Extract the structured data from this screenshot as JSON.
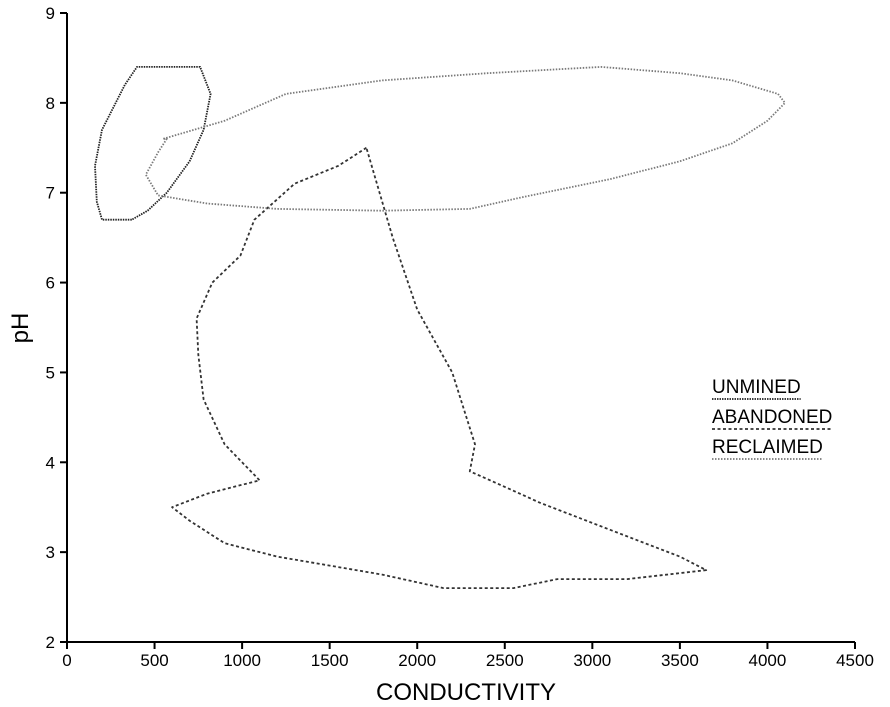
{
  "chart_data": {
    "type": "line",
    "title": "",
    "xlabel": "CONDUCTIVITY",
    "ylabel": "pH",
    "xlim": [
      0,
      4500
    ],
    "ylim": [
      2,
      9
    ],
    "x_ticks": [
      "0",
      "500",
      "1000",
      "1500",
      "2000",
      "2500",
      "3000",
      "3500",
      "4000",
      "4500"
    ],
    "y_ticks": [
      "2",
      "3",
      "4",
      "5",
      "6",
      "7",
      "8",
      "9"
    ],
    "grid": false,
    "legend_position": "right",
    "series": [
      {
        "name": "UNMINED",
        "color": "#222222",
        "dash": "1.5,1",
        "closed": true,
        "points": [
          [
            370,
            6.7
          ],
          [
            200,
            6.7
          ],
          [
            170,
            6.9
          ],
          [
            160,
            7.3
          ],
          [
            200,
            7.7
          ],
          [
            330,
            8.2
          ],
          [
            400,
            8.4
          ],
          [
            560,
            8.4
          ],
          [
            760,
            8.4
          ],
          [
            820,
            8.1
          ],
          [
            780,
            7.7
          ],
          [
            700,
            7.35
          ],
          [
            570,
            7.0
          ],
          [
            460,
            6.8
          ],
          [
            370,
            6.7
          ]
        ]
      },
      {
        "name": "ABANDONED",
        "color": "#333333",
        "dash": "3,2.5",
        "closed": true,
        "points": [
          [
            1710,
            7.5
          ],
          [
            1550,
            7.3
          ],
          [
            1300,
            7.1
          ],
          [
            1070,
            6.7
          ],
          [
            990,
            6.3
          ],
          [
            830,
            6.0
          ],
          [
            740,
            5.6
          ],
          [
            750,
            5.2
          ],
          [
            780,
            4.7
          ],
          [
            900,
            4.2
          ],
          [
            1100,
            3.8
          ],
          [
            800,
            3.65
          ],
          [
            600,
            3.5
          ],
          [
            700,
            3.35
          ],
          [
            900,
            3.1
          ],
          [
            1200,
            2.95
          ],
          [
            1500,
            2.85
          ],
          [
            1800,
            2.75
          ],
          [
            2150,
            2.6
          ],
          [
            2550,
            2.6
          ],
          [
            2800,
            2.7
          ],
          [
            3200,
            2.7
          ],
          [
            3650,
            2.8
          ],
          [
            3500,
            2.95
          ],
          [
            3300,
            3.1
          ],
          [
            3100,
            3.25
          ],
          [
            2900,
            3.4
          ],
          [
            2700,
            3.55
          ],
          [
            2530,
            3.7
          ],
          [
            2300,
            3.9
          ],
          [
            2330,
            4.2
          ],
          [
            2200,
            5.0
          ],
          [
            2000,
            5.7
          ],
          [
            1860,
            6.5
          ],
          [
            1710,
            7.5
          ]
        ]
      },
      {
        "name": "RECLAIMED",
        "color": "#7a7a7a",
        "dash": "1.5,1.5",
        "closed": true,
        "points": [
          [
            550,
            7.6
          ],
          [
            900,
            7.8
          ],
          [
            1250,
            8.1
          ],
          [
            1800,
            8.25
          ],
          [
            2400,
            8.33
          ],
          [
            3050,
            8.4
          ],
          [
            3500,
            8.33
          ],
          [
            3800,
            8.25
          ],
          [
            4060,
            8.1
          ],
          [
            4100,
            8.0
          ],
          [
            4000,
            7.8
          ],
          [
            3800,
            7.55
          ],
          [
            3500,
            7.35
          ],
          [
            3100,
            7.15
          ],
          [
            2600,
            6.95
          ],
          [
            2300,
            6.82
          ],
          [
            1800,
            6.8
          ],
          [
            1200,
            6.82
          ],
          [
            800,
            6.88
          ],
          [
            520,
            6.97
          ],
          [
            450,
            7.2
          ],
          [
            520,
            7.45
          ],
          [
            570,
            7.6
          ]
        ]
      }
    ]
  }
}
